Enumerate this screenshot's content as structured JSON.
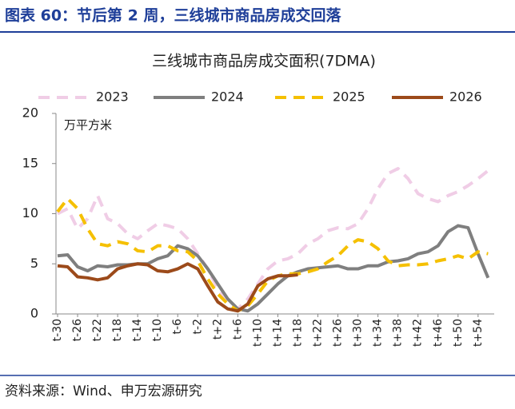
{
  "header": {
    "title": "图表 60：节后第 2 周，三线城市商品房成交回落"
  },
  "footer": {
    "source": "资料来源：Wind、申万宏源研究"
  },
  "chart_data": {
    "type": "line",
    "title": "三线城市商品房成交面积(7DMA)",
    "y_label": "万平方米",
    "categories": [
      "t-30",
      null,
      "t-26",
      null,
      "t-22",
      null,
      "t-18",
      null,
      "t-14",
      null,
      "t-10",
      null,
      "t-6",
      null,
      "t-2",
      null,
      "t+2",
      null,
      "t+6",
      null,
      "t+10",
      null,
      "t+14",
      null,
      "t+18",
      null,
      "t+22",
      null,
      "t+26",
      null,
      "t+30",
      null,
      "t+34",
      null,
      "t+38",
      null,
      "t+42",
      null,
      "t+46",
      null,
      "t+50",
      null,
      "t+54",
      null
    ],
    "ylim": [
      0,
      20
    ],
    "yticks": [
      0,
      5,
      10,
      15,
      20
    ],
    "legend": "top",
    "series": [
      {
        "name": "2023",
        "color": "#f0cde6",
        "dash": true,
        "values": [
          10,
          10.5,
          8.5,
          9.5,
          11.8,
          9.5,
          9,
          8,
          7.5,
          8.3,
          9,
          8.8,
          8.5,
          7.5,
          6,
          4.5,
          2.5,
          1.2,
          0.5,
          1.5,
          3,
          4.5,
          5.3,
          5.5,
          6,
          7,
          7.5,
          8.3,
          8.6,
          8.5,
          9,
          10.5,
          12.5,
          14,
          14.5,
          13.5,
          12,
          11.5,
          11.2,
          11.8,
          12.2,
          12.8,
          13.5,
          14.3
        ]
      },
      {
        "name": "2024",
        "color": "#7f7f7f",
        "dash": false,
        "values": [
          5.8,
          5.9,
          4.7,
          4.3,
          4.8,
          4.7,
          4.9,
          4.9,
          5,
          5,
          5.5,
          5.8,
          6.8,
          6.5,
          5.8,
          4.5,
          3,
          1.5,
          0.5,
          0.3,
          1,
          2,
          3,
          3.8,
          4.2,
          4.5,
          4.6,
          4.7,
          4.8,
          4.5,
          4.5,
          4.8,
          4.8,
          5.2,
          5.3,
          5.5,
          6,
          6.2,
          6.8,
          8.2,
          8.8,
          8.6,
          6,
          3.6
        ]
      },
      {
        "name": "2025",
        "color": "#f5c000",
        "dash": true,
        "values": [
          10.2,
          11.5,
          10.5,
          8.5,
          7,
          6.8,
          7.2,
          7,
          6.3,
          6.2,
          6.8,
          6.8,
          6.3,
          6.2,
          5.3,
          3.5,
          2,
          1,
          0.3,
          0.8,
          2,
          3.3,
          3.8,
          4,
          4,
          4.2,
          4.5,
          5.2,
          5.8,
          6.8,
          7.4,
          7.2,
          6.5,
          5.3,
          4.8,
          4.9,
          4.9,
          5,
          5.3,
          5.5,
          5.8,
          5.5,
          6.2,
          6
        ]
      },
      {
        "name": "2026",
        "color": "#9c4a1a",
        "dash": false,
        "values": [
          4.8,
          4.7,
          3.7,
          3.6,
          3.4,
          3.6,
          4.5,
          4.8,
          5,
          4.9,
          4.3,
          4.2,
          4.5,
          5,
          4.5,
          2.8,
          1.2,
          0.5,
          0.3,
          1,
          2.8,
          3.5,
          3.8,
          3.8,
          3.9,
          null,
          null,
          null,
          null,
          null,
          null,
          null,
          null,
          null,
          null,
          null,
          null,
          null,
          null,
          null,
          null,
          null,
          null,
          null
        ]
      }
    ]
  }
}
